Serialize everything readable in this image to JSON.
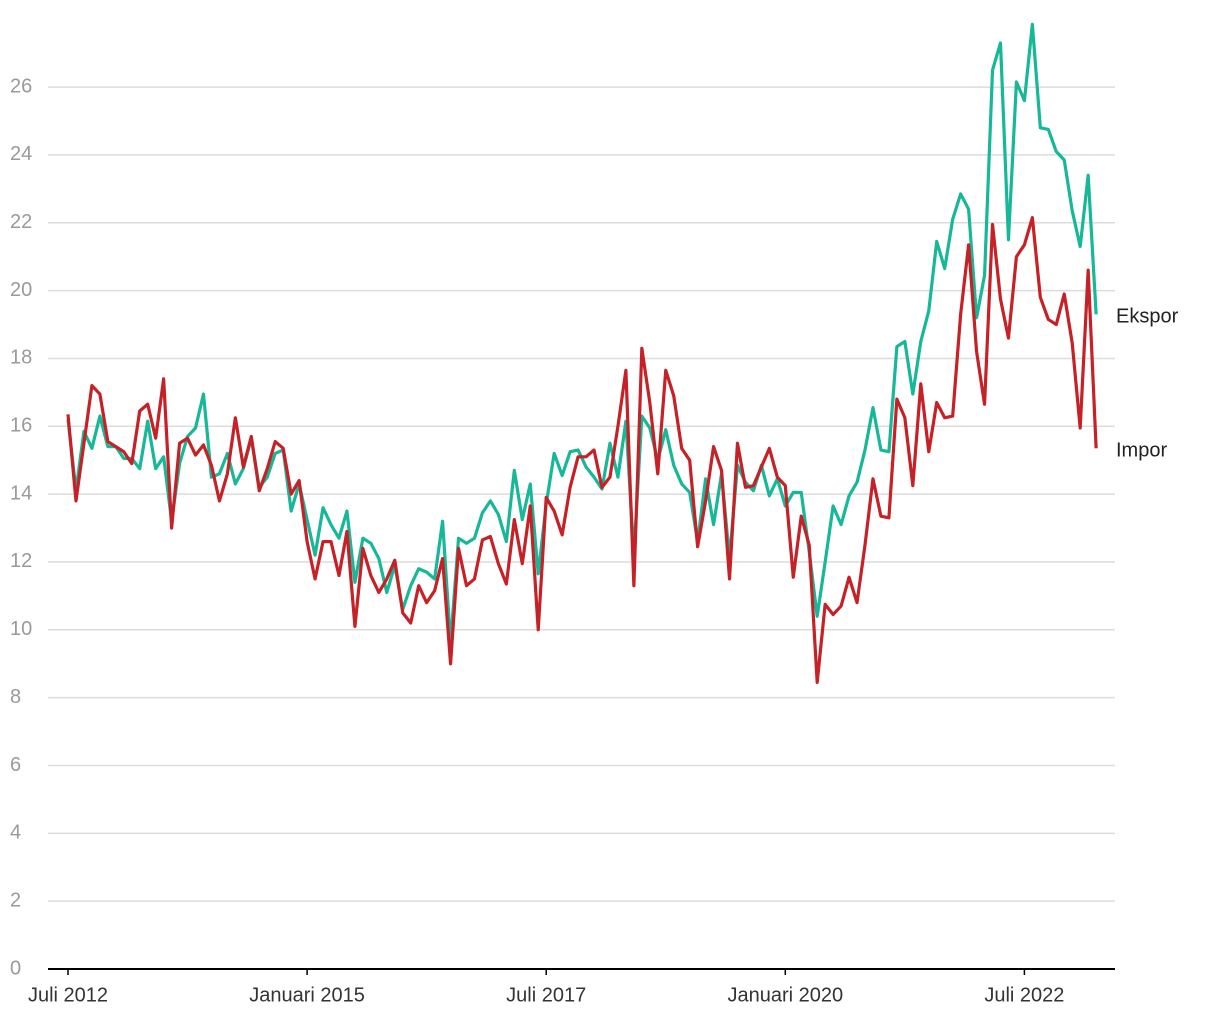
{
  "chart_data": {
    "type": "line",
    "x": [
      "2012-07",
      "2012-08",
      "2012-09",
      "2012-10",
      "2012-11",
      "2012-12",
      "2013-01",
      "2013-02",
      "2013-03",
      "2013-04",
      "2013-05",
      "2013-06",
      "2013-07",
      "2013-08",
      "2013-09",
      "2013-10",
      "2013-11",
      "2013-12",
      "2014-01",
      "2014-02",
      "2014-03",
      "2014-04",
      "2014-05",
      "2014-06",
      "2014-07",
      "2014-08",
      "2014-09",
      "2014-10",
      "2014-11",
      "2014-12",
      "2015-01",
      "2015-02",
      "2015-03",
      "2015-04",
      "2015-05",
      "2015-06",
      "2015-07",
      "2015-08",
      "2015-09",
      "2015-10",
      "2015-11",
      "2015-12",
      "2016-01",
      "2016-02",
      "2016-03",
      "2016-04",
      "2016-05",
      "2016-06",
      "2016-07",
      "2016-08",
      "2016-09",
      "2016-10",
      "2016-11",
      "2016-12",
      "2017-01",
      "2017-02",
      "2017-03",
      "2017-04",
      "2017-05",
      "2017-06",
      "2017-07",
      "2017-08",
      "2017-09",
      "2017-10",
      "2017-11",
      "2017-12",
      "2018-01",
      "2018-02",
      "2018-03",
      "2018-04",
      "2018-05",
      "2018-06",
      "2018-07",
      "2018-08",
      "2018-09",
      "2018-10",
      "2018-11",
      "2018-12",
      "2019-01",
      "2019-02",
      "2019-03",
      "2019-04",
      "2019-05",
      "2019-06",
      "2019-07",
      "2019-08",
      "2019-09",
      "2019-10",
      "2019-11",
      "2019-12",
      "2020-01",
      "2020-02",
      "2020-03",
      "2020-04",
      "2020-05",
      "2020-06",
      "2020-07",
      "2020-08",
      "2020-09",
      "2020-10",
      "2020-11",
      "2020-12",
      "2021-01",
      "2021-02",
      "2021-03",
      "2021-04",
      "2021-05",
      "2021-06",
      "2021-07",
      "2021-08",
      "2021-09",
      "2021-10",
      "2021-11",
      "2021-12",
      "2022-01",
      "2022-02",
      "2022-03",
      "2022-04",
      "2022-05",
      "2022-06",
      "2022-07",
      "2022-08",
      "2022-09",
      "2022-10",
      "2022-11",
      "2022-12",
      "2023-01",
      "2023-02",
      "2023-03",
      "2023-04"
    ],
    "series": [
      {
        "name": "Ekspor",
        "color": "#17b897",
        "values": [
          16.2,
          14.1,
          15.85,
          15.35,
          16.3,
          15.4,
          15.4,
          15.05,
          15.05,
          14.75,
          16.15,
          14.75,
          15.1,
          13.2,
          14.9,
          15.7,
          15.95,
          16.95,
          14.5,
          14.6,
          15.2,
          14.3,
          14.75,
          15.65,
          14.2,
          14.5,
          15.2,
          15.3,
          13.5,
          14.3,
          13.25,
          12.2,
          13.6,
          13.1,
          12.7,
          13.5,
          11.4,
          12.7,
          12.55,
          12.1,
          11.1,
          11.9,
          10.6,
          11.3,
          11.8,
          11.7,
          11.5,
          13.2,
          9.6,
          12.7,
          12.55,
          12.7,
          13.45,
          13.8,
          13.4,
          12.6,
          14.7,
          13.25,
          14.3,
          11.65,
          13.7,
          15.2,
          14.55,
          15.25,
          15.3,
          14.8,
          14.5,
          14.15,
          15.5,
          14.5,
          16.15,
          12.2,
          16.3,
          15.95,
          15.0,
          15.9,
          14.85,
          14.3,
          14.05,
          12.6,
          14.45,
          13.1,
          14.6,
          12.1,
          14.85,
          14.35,
          14.1,
          14.85,
          13.95,
          14.45,
          13.65,
          14.05,
          14.05,
          12.3,
          10.4,
          12.0,
          13.65,
          13.1,
          13.95,
          14.35,
          15.3,
          16.55,
          15.3,
          15.25,
          18.35,
          18.5,
          16.95,
          18.5,
          19.4,
          21.45,
          20.65,
          22.1,
          22.85,
          22.4,
          19.2,
          20.45,
          26.5,
          27.3,
          21.5,
          26.15,
          25.6,
          27.85,
          24.8,
          24.75,
          24.1,
          23.85,
          22.35,
          21.3,
          23.4,
          19.3
        ]
      },
      {
        "name": "Impor",
        "color": "#c62127",
        "values": [
          16.35,
          13.8,
          15.5,
          17.2,
          16.95,
          15.55,
          15.4,
          15.25,
          14.9,
          16.45,
          16.65,
          15.65,
          17.4,
          13.0,
          15.5,
          15.65,
          15.15,
          15.45,
          14.85,
          13.8,
          14.6,
          16.25,
          14.8,
          15.7,
          14.1,
          14.75,
          15.55,
          15.35,
          14.0,
          14.4,
          12.6,
          11.5,
          12.6,
          12.6,
          11.6,
          12.9,
          10.1,
          12.4,
          11.6,
          11.1,
          11.5,
          12.05,
          10.5,
          10.2,
          11.3,
          10.8,
          11.15,
          12.1,
          9.0,
          12.4,
          11.3,
          11.5,
          12.65,
          12.75,
          11.95,
          11.35,
          13.25,
          11.95,
          13.65,
          10.0,
          13.9,
          13.5,
          12.8,
          14.2,
          15.1,
          15.1,
          15.3,
          14.2,
          14.5,
          16.0,
          17.65,
          11.3,
          18.3,
          16.7,
          14.6,
          17.65,
          16.9,
          15.35,
          15.0,
          12.45,
          13.8,
          15.4,
          14.7,
          11.5,
          15.5,
          14.2,
          14.25,
          14.8,
          15.35,
          14.5,
          14.25,
          11.55,
          13.35,
          12.5,
          8.45,
          10.75,
          10.45,
          10.7,
          11.55,
          10.8,
          12.5,
          14.45,
          13.35,
          13.3,
          16.8,
          16.25,
          14.25,
          17.25,
          15.25,
          16.7,
          16.25,
          16.3,
          19.3,
          21.35,
          18.2,
          16.65,
          21.95,
          19.75,
          18.6,
          21.0,
          21.35,
          22.15,
          19.8,
          19.15,
          19.0,
          19.9,
          18.45,
          15.95,
          20.6,
          15.35
        ]
      }
    ],
    "xticks": [
      {
        "value": "2012-07",
        "label": "Juli 2012"
      },
      {
        "value": "2015-01",
        "label": "Januari 2015"
      },
      {
        "value": "2017-07",
        "label": "Juli 2017"
      },
      {
        "value": "2020-01",
        "label": "Januari 2020"
      },
      {
        "value": "2022-07",
        "label": "Juli 2022"
      }
    ],
    "ylim": [
      0,
      28
    ],
    "yticks": [
      0,
      2,
      4,
      6,
      8,
      10,
      12,
      14,
      16,
      18,
      20,
      22,
      24,
      26
    ],
    "grid": true
  }
}
